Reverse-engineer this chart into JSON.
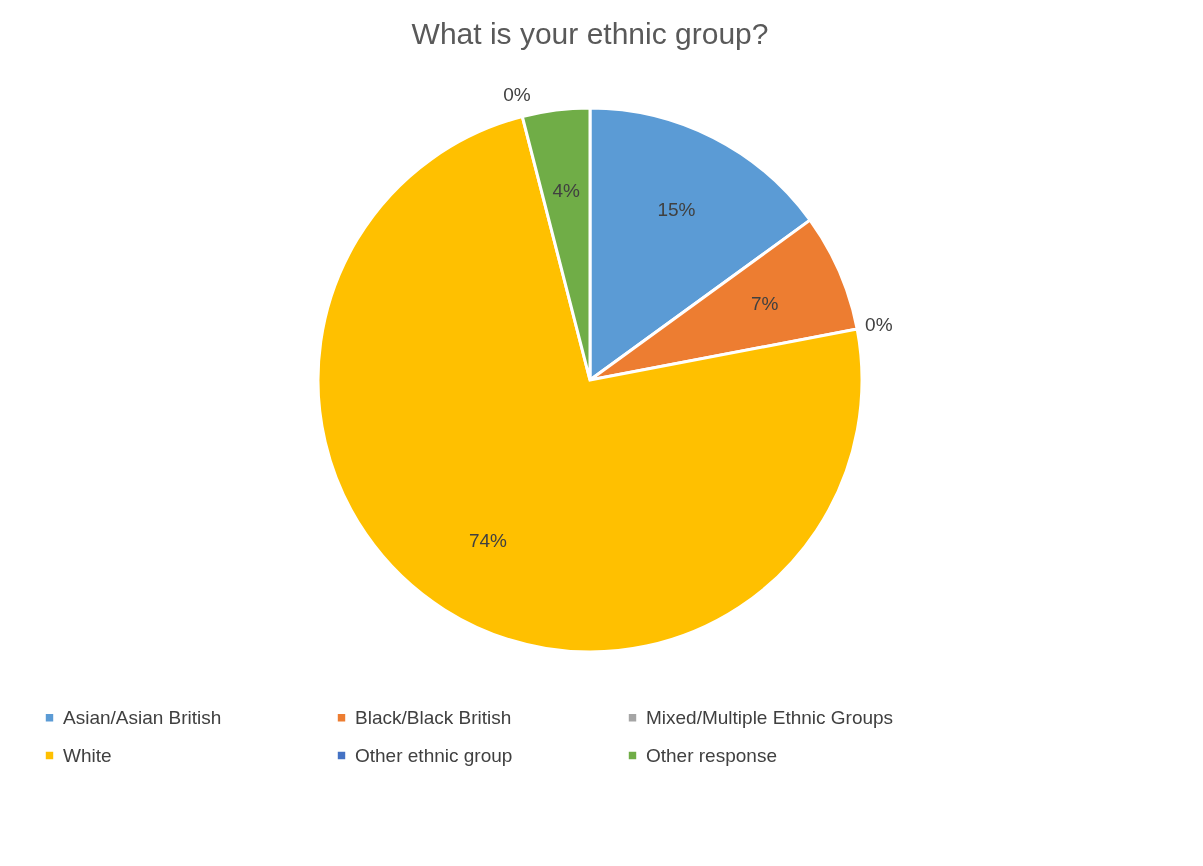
{
  "chart_data": {
    "type": "pie",
    "title": "What is your ethnic group?",
    "categories": [
      "Asian/Asian British",
      "Black/Black British",
      "Mixed/Multiple Ethnic Groups",
      "White",
      "Other ethnic group",
      "Other response"
    ],
    "values": [
      15,
      7,
      0,
      74,
      0,
      4
    ],
    "value_labels": [
      "15%",
      "7%",
      "0%",
      "74%",
      "0%",
      "4%"
    ],
    "colors": [
      "#5b9bd5",
      "#ed7d31",
      "#a5a5a5",
      "#ffc000",
      "#4472c4",
      "#70ad47"
    ],
    "legend": "bottom"
  }
}
